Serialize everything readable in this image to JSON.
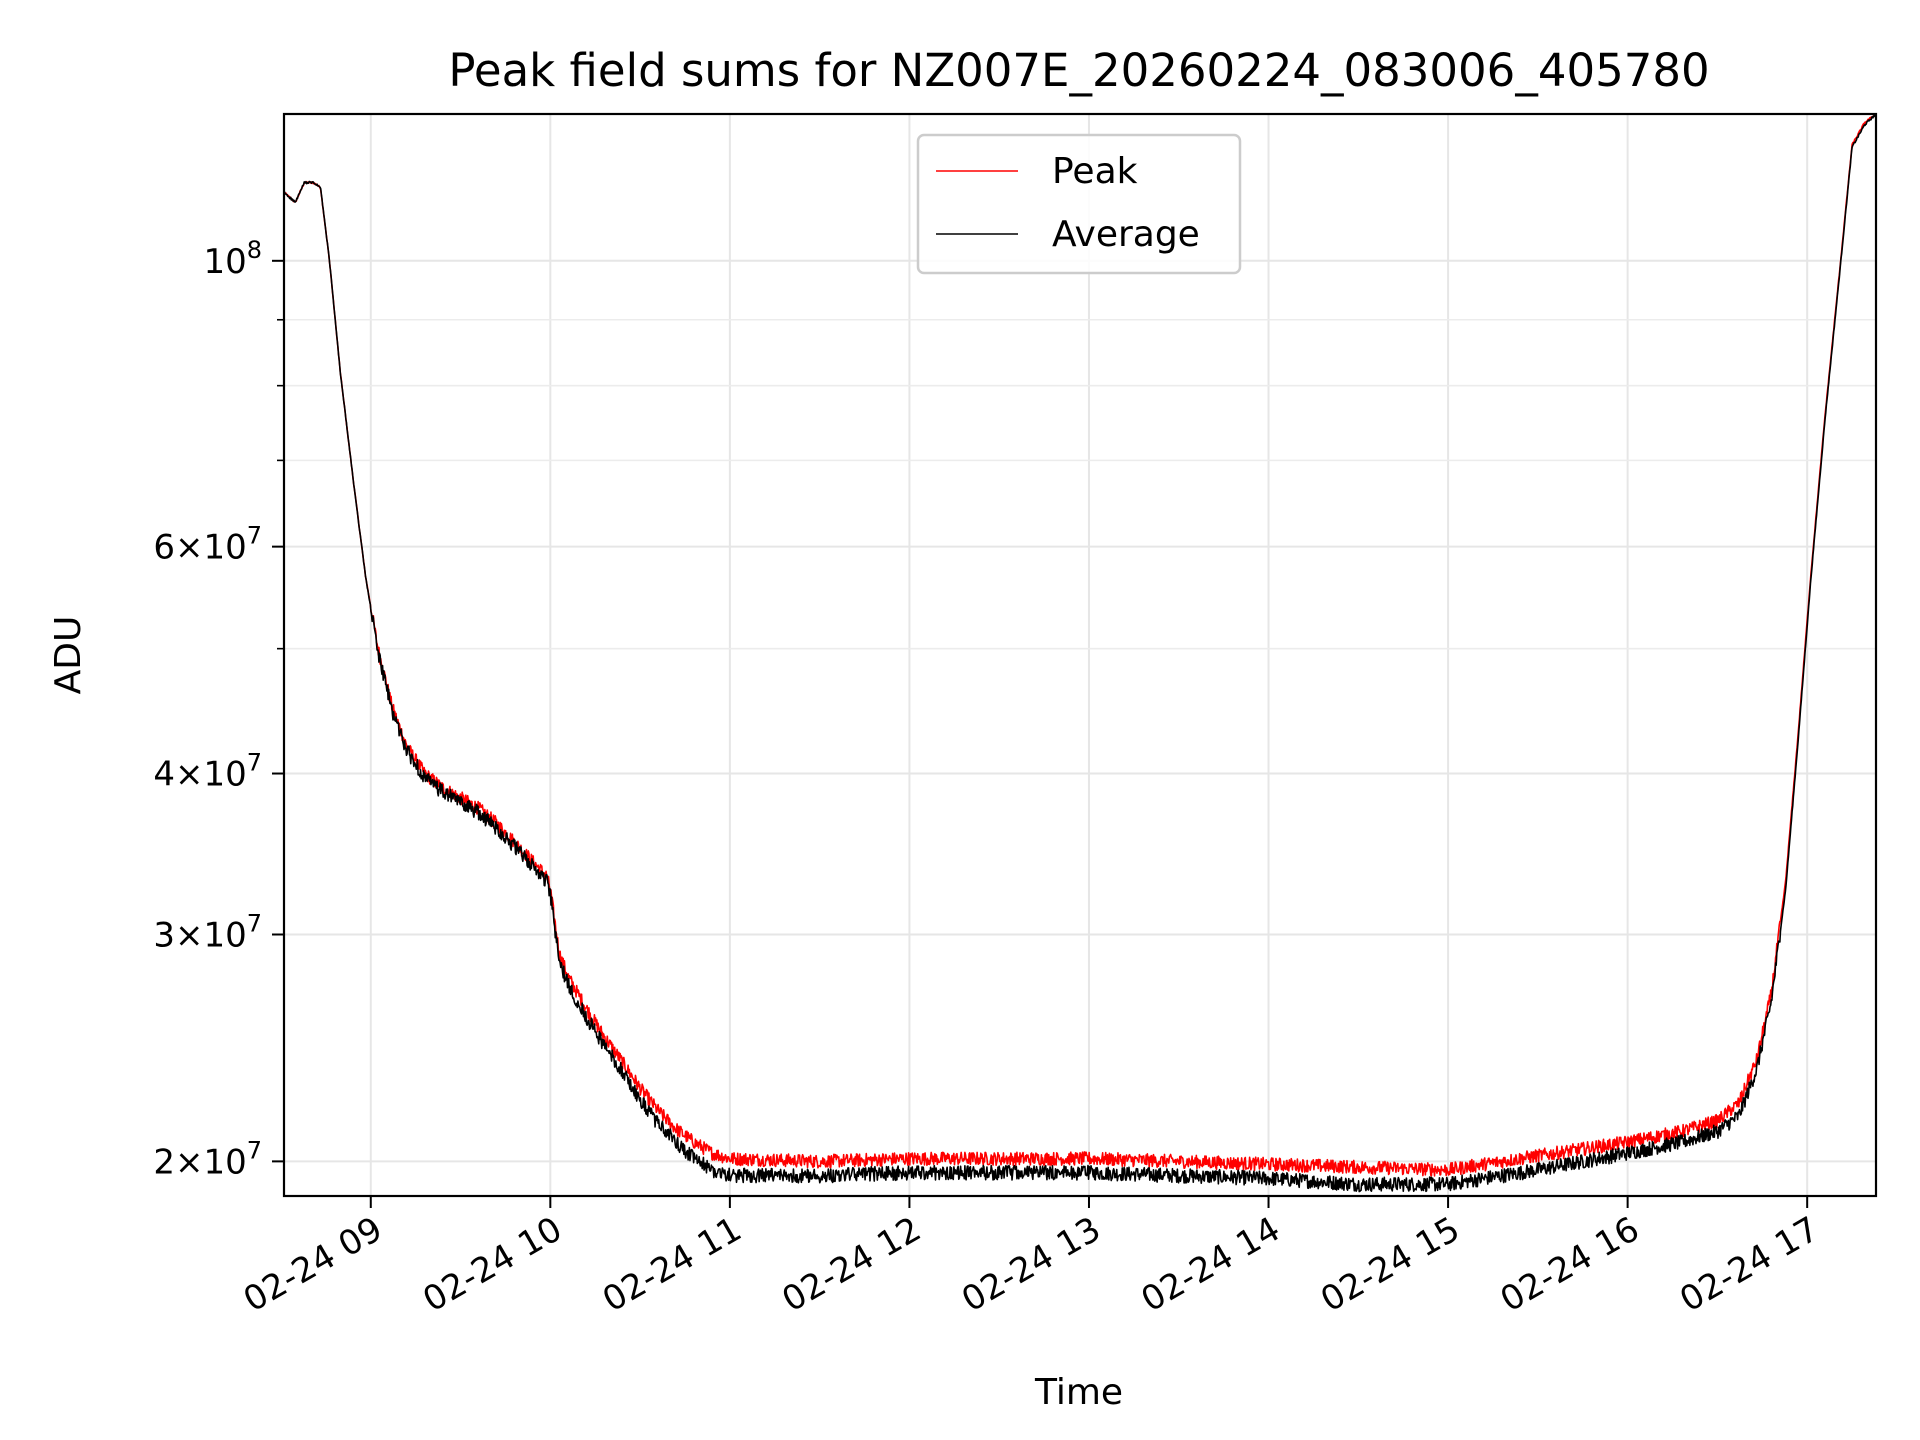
{
  "chart_data": {
    "type": "line",
    "title": "Peak field sums for NZ007E_20260224_083006_405780",
    "xlabel": "Time",
    "ylabel": "ADU",
    "yscale": "log",
    "ylim": [
      18800000,
      130000000
    ],
    "xlim_hours": [
      8.5167,
      17.3833
    ],
    "grid": true,
    "legend_position": "upper center",
    "x_ticks": [
      {
        "hour": 9,
        "label": "02-24 09"
      },
      {
        "hour": 10,
        "label": "02-24 10"
      },
      {
        "hour": 11,
        "label": "02-24 11"
      },
      {
        "hour": 12,
        "label": "02-24 12"
      },
      {
        "hour": 13,
        "label": "02-24 13"
      },
      {
        "hour": 14,
        "label": "02-24 14"
      },
      {
        "hour": 15,
        "label": "02-24 15"
      },
      {
        "hour": 16,
        "label": "02-24 16"
      },
      {
        "hour": 17,
        "label": "02-24 17"
      }
    ],
    "y_ticks": [
      {
        "value": 20000000,
        "mantissa": "2",
        "exponent": "7"
      },
      {
        "value": 30000000,
        "mantissa": "3",
        "exponent": "7"
      },
      {
        "value": 40000000,
        "mantissa": "4",
        "exponent": "7"
      },
      {
        "value": 60000000,
        "mantissa": "6",
        "exponent": "7"
      },
      {
        "value": 100000000,
        "mantissa": "",
        "exponent": "8"
      }
    ],
    "y_minor_ticks": [
      50000000,
      70000000,
      80000000,
      90000000
    ],
    "series": [
      {
        "name": "Peak",
        "color": "#ff0000",
        "noise_amplitude": 0.012,
        "points": [
          [
            8.5167,
            113000000
          ],
          [
            8.58,
            111000000
          ],
          [
            8.63,
            115000000
          ],
          [
            8.68,
            115000000
          ],
          [
            8.72,
            114000000
          ],
          [
            8.77,
            100000000
          ],
          [
            8.83,
            82000000
          ],
          [
            8.9,
            68000000
          ],
          [
            8.97,
            57000000
          ],
          [
            9.04,
            50000000
          ],
          [
            9.12,
            45000000
          ],
          [
            9.2,
            42000000
          ],
          [
            9.3,
            40000000
          ],
          [
            9.4,
            39000000
          ],
          [
            9.5,
            38300000
          ],
          [
            9.6,
            37600000
          ],
          [
            9.7,
            36600000
          ],
          [
            9.8,
            35400000
          ],
          [
            9.9,
            34200000
          ],
          [
            9.98,
            33300000
          ],
          [
            10.0,
            32500000
          ],
          [
            10.05,
            29000000
          ],
          [
            10.1,
            27800000
          ],
          [
            10.2,
            26300000
          ],
          [
            10.3,
            25000000
          ],
          [
            10.4,
            23900000
          ],
          [
            10.5,
            22800000
          ],
          [
            10.6,
            21900000
          ],
          [
            10.7,
            21200000
          ],
          [
            10.8,
            20700000
          ],
          [
            10.9,
            20300000
          ],
          [
            11.0,
            20100000
          ],
          [
            11.5,
            20000000
          ],
          [
            12.0,
            20100000
          ],
          [
            12.5,
            20100000
          ],
          [
            13.0,
            20100000
          ],
          [
            13.5,
            20000000
          ],
          [
            14.0,
            19900000
          ],
          [
            14.5,
            19800000
          ],
          [
            15.0,
            19700000
          ],
          [
            15.5,
            20200000
          ],
          [
            16.0,
            20700000
          ],
          [
            16.3,
            21100000
          ],
          [
            16.5,
            21500000
          ],
          [
            16.62,
            22200000
          ],
          [
            16.72,
            24000000
          ],
          [
            16.8,
            27000000
          ],
          [
            16.88,
            33000000
          ],
          [
            16.95,
            43000000
          ],
          [
            17.02,
            57000000
          ],
          [
            17.1,
            76000000
          ],
          [
            17.18,
            98000000
          ],
          [
            17.25,
            123000000
          ],
          [
            17.32,
            128000000
          ],
          [
            17.3833,
            130000000
          ]
        ]
      },
      {
        "name": "Average",
        "color": "#000000",
        "noise_amplitude": 0.013,
        "points": [
          [
            8.5167,
            113000000
          ],
          [
            8.58,
            111000000
          ],
          [
            8.63,
            115000000
          ],
          [
            8.68,
            115000000
          ],
          [
            8.72,
            114000000
          ],
          [
            8.77,
            100000000
          ],
          [
            8.83,
            82000000
          ],
          [
            8.9,
            68000000
          ],
          [
            8.97,
            57000000
          ],
          [
            9.04,
            49700000
          ],
          [
            9.12,
            44700000
          ],
          [
            9.2,
            41700000
          ],
          [
            9.3,
            39700000
          ],
          [
            9.4,
            38700000
          ],
          [
            9.5,
            38000000
          ],
          [
            9.6,
            37300000
          ],
          [
            9.7,
            36300000
          ],
          [
            9.8,
            35100000
          ],
          [
            9.9,
            33900000
          ],
          [
            9.98,
            33000000
          ],
          [
            10.0,
            32200000
          ],
          [
            10.05,
            28600000
          ],
          [
            10.1,
            27400000
          ],
          [
            10.2,
            25900000
          ],
          [
            10.3,
            24600000
          ],
          [
            10.4,
            23500000
          ],
          [
            10.5,
            22300000
          ],
          [
            10.6,
            21400000
          ],
          [
            10.7,
            20700000
          ],
          [
            10.8,
            20100000
          ],
          [
            10.9,
            19700000
          ],
          [
            11.0,
            19500000
          ],
          [
            11.5,
            19500000
          ],
          [
            12.0,
            19600000
          ],
          [
            12.5,
            19600000
          ],
          [
            13.0,
            19600000
          ],
          [
            13.5,
            19500000
          ],
          [
            14.0,
            19400000
          ],
          [
            14.5,
            19200000
          ],
          [
            15.0,
            19200000
          ],
          [
            15.5,
            19700000
          ],
          [
            16.0,
            20300000
          ],
          [
            16.3,
            20700000
          ],
          [
            16.5,
            21100000
          ],
          [
            16.62,
            21700000
          ],
          [
            16.72,
            23600000
          ],
          [
            16.8,
            26600000
          ],
          [
            16.88,
            32500000
          ],
          [
            16.95,
            42500000
          ],
          [
            17.02,
            56500000
          ],
          [
            17.1,
            75500000
          ],
          [
            17.18,
            97500000
          ],
          [
            17.25,
            122500000
          ],
          [
            17.32,
            127500000
          ],
          [
            17.3833,
            130000000
          ]
        ]
      }
    ]
  }
}
